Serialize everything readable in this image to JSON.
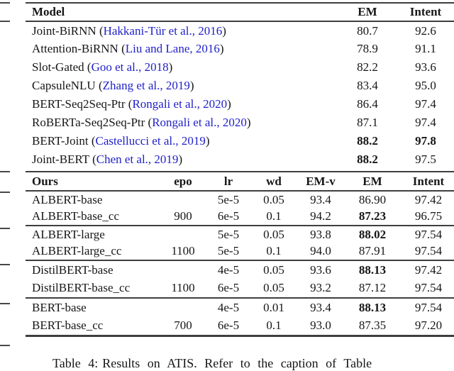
{
  "colors": {
    "citation_blue": "#1f1fc8",
    "rule_color": "#3e3e3e",
    "text_color": "#161616"
  },
  "top_table": {
    "headers": {
      "model": "Model",
      "em": "EM",
      "intent": "Intent"
    },
    "rows": [
      {
        "model": "Joint-BiRNN",
        "citation": "Hakkani-Tür et al., 2016",
        "em": "80.7",
        "intent": "92.6",
        "em_bold": false,
        "intent_bold": false
      },
      {
        "model": "Attention-BiRNN",
        "citation": "Liu and Lane, 2016",
        "em": "78.9",
        "intent": "91.1",
        "em_bold": false,
        "intent_bold": false
      },
      {
        "model": "Slot-Gated",
        "citation": "Goo et al., 2018",
        "em": "82.2",
        "intent": "93.6",
        "em_bold": false,
        "intent_bold": false
      },
      {
        "model": "CapsuleNLU",
        "citation": "Zhang et al., 2019",
        "em": "83.4",
        "intent": "95.0",
        "em_bold": false,
        "intent_bold": false
      },
      {
        "model": "BERT-Seq2Seq-Ptr",
        "citation": "Rongali et al., 2020",
        "em": "86.4",
        "intent": "97.4",
        "em_bold": false,
        "intent_bold": false
      },
      {
        "model": "RoBERTa-Seq2Seq-Ptr",
        "citation": "Rongali et al., 2020",
        "em": "87.1",
        "intent": "97.4",
        "em_bold": false,
        "intent_bold": false
      },
      {
        "model": "BERT-Joint",
        "citation": "Castellucci et al., 2019",
        "em": "88.2",
        "intent": "97.8",
        "em_bold": true,
        "intent_bold": true
      },
      {
        "model": "Joint-BERT",
        "citation": "Chen et al., 2019",
        "em": "88.2",
        "intent": "97.5",
        "em_bold": true,
        "intent_bold": false
      }
    ]
  },
  "bottom_table": {
    "headers": [
      "Ours",
      "epo",
      "lr",
      "wd",
      "EM-v",
      "EM",
      "Intent"
    ],
    "rows": [
      {
        "name": "ALBERT-base",
        "epo": "",
        "lr": "5e-5",
        "wd": "0.05",
        "em_v": "93.4",
        "em": "86.90",
        "intent": "97.42",
        "em_bold": false
      },
      {
        "name": "ALBERT-base_cc",
        "epo": "900",
        "lr": "6e-5",
        "wd": "0.1",
        "em_v": "94.2",
        "em": "87.23",
        "intent": "96.75",
        "em_bold": true
      },
      {
        "name": "ALBERT-large",
        "epo": "",
        "lr": "5e-5",
        "wd": "0.05",
        "em_v": "93.8",
        "em": "88.02",
        "intent": "97.54",
        "em_bold": true
      },
      {
        "name": "ALBERT-large_cc",
        "epo": "1100",
        "lr": "5e-5",
        "wd": "0.1",
        "em_v": "94.0",
        "em": "87.91",
        "intent": "97.54",
        "em_bold": false
      },
      {
        "name": "DistilBERT-base",
        "epo": "",
        "lr": "4e-5",
        "wd": "0.05",
        "em_v": "93.6",
        "em": "88.13",
        "intent": "97.42",
        "em_bold": true
      },
      {
        "name": "DistilBERT-base_cc",
        "epo": "1100",
        "lr": "6e-5",
        "wd": "0.05",
        "em_v": "93.2",
        "em": "87.12",
        "intent": "97.54",
        "em_bold": false
      },
      {
        "name": "BERT-base",
        "epo": "",
        "lr": "4e-5",
        "wd": "0.01",
        "em_v": "93.4",
        "em": "88.13",
        "intent": "97.54",
        "em_bold": true
      },
      {
        "name": "BERT-base_cc",
        "epo": "700",
        "lr": "6e-5",
        "wd": "0.1",
        "em_v": "93.0",
        "em": "87.35",
        "intent": "97.20",
        "em_bold": false
      }
    ]
  },
  "caption": {
    "label": "Table 4:",
    "text": "Results on ATIS. Refer to the caption of Table"
  }
}
